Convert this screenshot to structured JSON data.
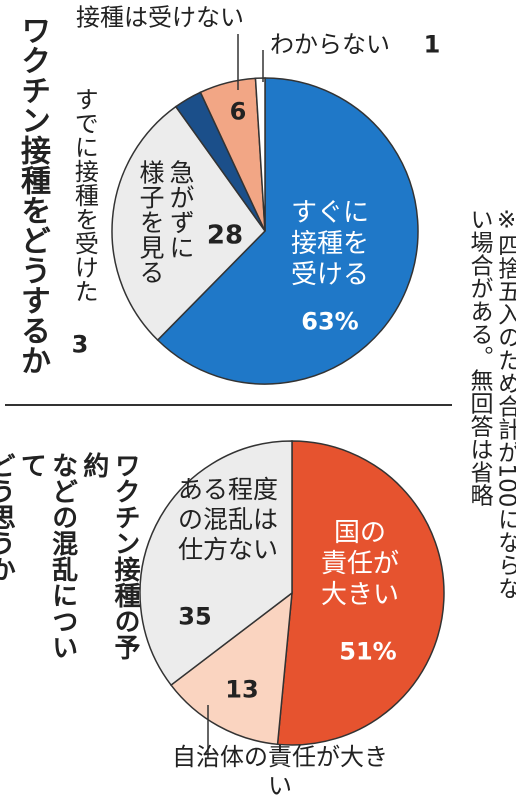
{
  "chart_data": [
    {
      "type": "pie",
      "title": "ワクチン接種をどうするか",
      "categories": [
        "すぐに\n接種を\n受ける",
        "急がずに\n様子を見る",
        "すでに接種を受けた",
        "接種は受けない",
        "わからない"
      ],
      "values": [
        63,
        28,
        3,
        6,
        1
      ],
      "value_labels": [
        "63%",
        "28",
        "3",
        "6",
        "1"
      ],
      "colors": [
        "#1f78c8",
        "#ececec",
        "#1b4f8a",
        "#f2a685",
        "#ffffff"
      ]
    },
    {
      "type": "pie",
      "title": "ワクチン接種の予約\nなどの混乱について\nどう思うか",
      "categories": [
        "国の\n責任が\n大きい",
        "自治体の責任が大きい",
        "ある程度\nの混乱は\n仕方ない"
      ],
      "values": [
        51,
        13,
        35
      ],
      "value_labels": [
        "51%",
        "13",
        "35"
      ],
      "colors": [
        "#e6532f",
        "#fad4c0",
        "#ececec"
      ]
    }
  ],
  "note": "※四捨五入のため合計が100にならない場合がある。無回答は省略"
}
